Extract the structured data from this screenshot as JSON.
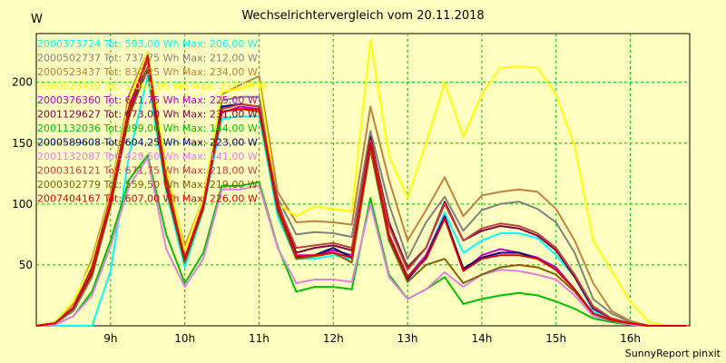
{
  "chart_data": {
    "type": "line",
    "title": "Wechselrichtervergleich vom 20.11.2018",
    "y_unit": "W",
    "footer": "SunnyReport pinxit",
    "ylim": [
      0,
      240
    ],
    "yticks": [
      50,
      100,
      150,
      200
    ],
    "xlim": [
      8.0,
      16.8
    ],
    "xticks": [
      {
        "value": 9,
        "label": "9h"
      },
      {
        "value": 10,
        "label": "10h"
      },
      {
        "value": 11,
        "label": "11h"
      },
      {
        "value": 12,
        "label": "12h"
      },
      {
        "value": 13,
        "label": "13h"
      },
      {
        "value": 14,
        "label": "14h"
      },
      {
        "value": 15,
        "label": "15h"
      },
      {
        "value": 16,
        "label": "16h"
      }
    ],
    "grid": true,
    "legend_position": "top-left",
    "x": [
      8.0,
      8.25,
      8.5,
      8.75,
      9.0,
      9.25,
      9.5,
      9.75,
      10.0,
      10.25,
      10.5,
      10.75,
      11.0,
      11.25,
      11.5,
      11.75,
      12.0,
      12.25,
      12.5,
      12.75,
      13.0,
      13.25,
      13.5,
      13.75,
      14.0,
      14.25,
      14.5,
      14.75,
      15.0,
      15.25,
      15.5,
      15.75,
      16.0,
      16.25,
      16.5,
      16.75
    ],
    "series": [
      {
        "name": "2000373724 Tot: 593,00 Wh Max: 206,00 W",
        "color": "#00FFFF",
        "values": [
          0,
          0,
          0,
          0,
          45,
          140,
          205,
          110,
          48,
          95,
          170,
          172,
          172,
          90,
          55,
          55,
          58,
          55,
          150,
          72,
          40,
          58,
          93,
          60,
          70,
          76,
          76,
          72,
          58,
          40,
          12,
          6,
          2,
          0,
          0,
          0
        ]
      },
      {
        "name": "2000502737 Tot: 737,75 Wh Max: 212,00 W",
        "color": "#808080",
        "values": [
          0,
          2,
          12,
          40,
          100,
          180,
          212,
          120,
          55,
          100,
          185,
          188,
          188,
          105,
          75,
          77,
          76,
          73,
          160,
          100,
          55,
          85,
          106,
          78,
          95,
          100,
          102,
          96,
          85,
          60,
          22,
          10,
          3,
          0,
          0,
          0
        ]
      },
      {
        "name": "2000523437 Tot: 830,25 Wh Max: 234,00 W",
        "color": "#C08040",
        "values": [
          0,
          3,
          18,
          55,
          110,
          190,
          225,
          125,
          65,
          105,
          190,
          198,
          205,
          110,
          85,
          86,
          85,
          83,
          180,
          120,
          70,
          95,
          122,
          90,
          107,
          110,
          112,
          110,
          96,
          70,
          35,
          12,
          4,
          0,
          0,
          0
        ]
      },
      {
        "name": "2000523439 Tot: 1.061,00 Wh Max: 233,00 W",
        "color": "#FFFF00",
        "values": [
          0,
          3,
          20,
          52,
          108,
          185,
          225,
          130,
          62,
          105,
          192,
          195,
          200,
          100,
          90,
          98,
          96,
          94,
          235,
          140,
          105,
          150,
          200,
          155,
          190,
          212,
          213,
          212,
          190,
          148,
          70,
          45,
          20,
          3,
          0,
          0
        ]
      },
      {
        "name": "2000376360 Tot: 611,75 Wh Max: 225,00 W",
        "color": "#C000C0",
        "values": [
          0,
          2,
          15,
          45,
          100,
          175,
          210,
          115,
          55,
          100,
          175,
          180,
          178,
          98,
          58,
          58,
          62,
          58,
          148,
          75,
          40,
          58,
          90,
          45,
          58,
          63,
          60,
          56,
          48,
          30,
          10,
          5,
          2,
          0,
          0,
          0
        ]
      },
      {
        "name": "2001129627 Tot: 673,00 Wh Max: 231,00 W",
        "color": "#800040",
        "values": [
          0,
          2,
          15,
          48,
          105,
          180,
          220,
          120,
          55,
          100,
          180,
          182,
          180,
          102,
          60,
          64,
          66,
          62,
          155,
          85,
          48,
          64,
          102,
          70,
          78,
          82,
          80,
          74,
          62,
          40,
          14,
          6,
          2,
          0,
          0,
          0
        ]
      },
      {
        "name": "2001132036 Tot: 399,00 Wh Max: 144,00 W",
        "color": "#00C000",
        "values": [
          0,
          1,
          8,
          28,
          70,
          120,
          140,
          75,
          35,
          60,
          115,
          115,
          118,
          65,
          28,
          32,
          32,
          30,
          105,
          42,
          22,
          30,
          40,
          18,
          22,
          25,
          27,
          25,
          20,
          14,
          6,
          3,
          1,
          0,
          0,
          0
        ]
      },
      {
        "name": "2000589608 Tot: 604,25 Wh Max: 223,00 W",
        "color": "#000080",
        "values": [
          0,
          2,
          14,
          44,
          100,
          175,
          212,
          116,
          52,
          98,
          180,
          182,
          180,
          96,
          56,
          58,
          64,
          56,
          146,
          72,
          38,
          56,
          90,
          47,
          56,
          60,
          60,
          55,
          46,
          30,
          10,
          5,
          2,
          0,
          0,
          0
        ]
      },
      {
        "name": "2001132087 Tot: 428,50 Wh Max: 141,00 W",
        "color": "#E080E0",
        "values": [
          0,
          1,
          8,
          25,
          65,
          115,
          138,
          63,
          32,
          55,
          112,
          112,
          115,
          64,
          35,
          38,
          38,
          36,
          100,
          40,
          22,
          30,
          44,
          32,
          42,
          46,
          45,
          42,
          38,
          25,
          8,
          4,
          1,
          0,
          0,
          0
        ]
      },
      {
        "name": "2000316121 Tot: 671,75 Wh Max: 218,00 W",
        "color": "#C04040",
        "values": [
          0,
          2,
          15,
          46,
          104,
          178,
          218,
          118,
          56,
          100,
          178,
          182,
          180,
          100,
          64,
          66,
          68,
          64,
          152,
          82,
          46,
          64,
          100,
          70,
          80,
          84,
          82,
          76,
          64,
          42,
          16,
          6,
          2,
          0,
          0,
          0
        ]
      },
      {
        "name": "2000302779 Tot: 559,50 Wh Max: 219,00 W",
        "color": "#806000",
        "values": [
          0,
          2,
          14,
          42,
          98,
          172,
          212,
          113,
          52,
          96,
          176,
          178,
          176,
          94,
          55,
          57,
          60,
          52,
          145,
          70,
          36,
          50,
          55,
          35,
          42,
          48,
          50,
          48,
          42,
          28,
          10,
          4,
          2,
          0,
          0,
          0
        ]
      },
      {
        "name": "2007404167 Tot: 607,00 Wh Max: 226,00 W",
        "color": "#E00000",
        "values": [
          0,
          2,
          15,
          44,
          100,
          176,
          222,
          115,
          55,
          98,
          176,
          178,
          178,
          98,
          57,
          58,
          60,
          56,
          150,
          74,
          40,
          55,
          88,
          45,
          55,
          58,
          58,
          55,
          46,
          30,
          10,
          5,
          2,
          0,
          0,
          0
        ]
      }
    ]
  }
}
